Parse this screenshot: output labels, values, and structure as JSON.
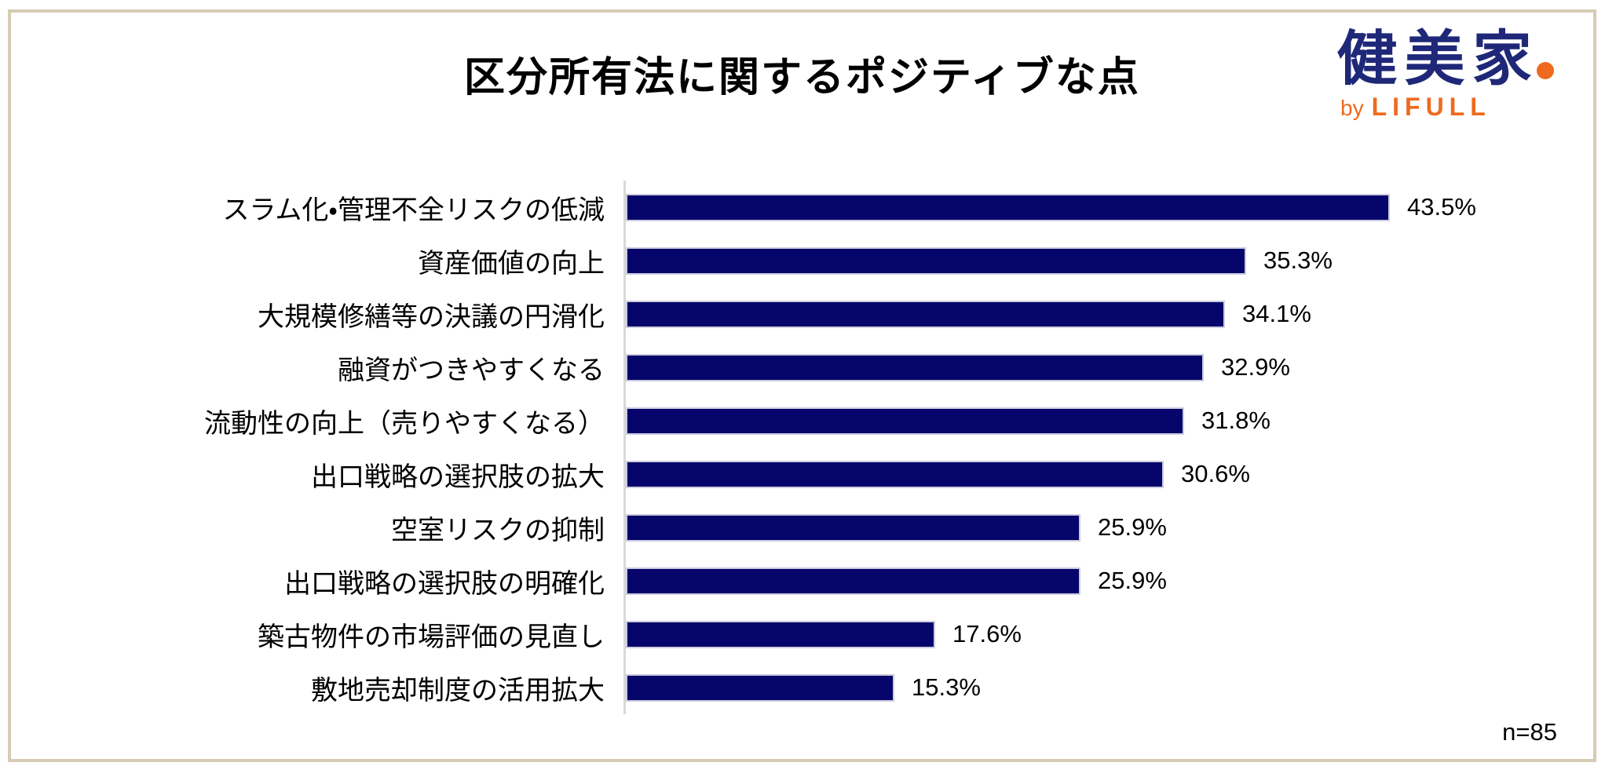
{
  "page": {
    "background_color": "#ffffff",
    "frame_border_color": "#d6ccb4"
  },
  "header": {
    "title": "区分所有法に関するポジティブな点",
    "logo": {
      "brand": "健美家",
      "byline_prefix": "by",
      "byline_brand": "LIFULL",
      "brand_color": "#1f2878",
      "accent_color": "#ee6a1f",
      "dot_icon": "orange-dot"
    }
  },
  "chart_data": {
    "type": "bar",
    "orientation": "horizontal",
    "title": "区分所有法に関するポジティブな点",
    "categories": [
      "スラム化・管理不全リスクの低減",
      "資産価値の向上",
      "大規模修繕等の決議の円滑化",
      "融資がつきやすくなる",
      "流動性の向上（売りやすくなる）",
      "出口戦略の選択肢の拡大",
      "空室リスクの抑制",
      "出口戦略の選択肢の明確化",
      "築古物件の市場評価の見直し",
      "敷地売却制度の活用拡大"
    ],
    "values": [
      43.5,
      35.3,
      34.1,
      32.9,
      31.8,
      30.6,
      25.9,
      25.9,
      17.6,
      15.3
    ],
    "value_labels": [
      "43.5%",
      "35.3%",
      "34.1%",
      "32.9%",
      "31.8%",
      "30.6%",
      "25.9%",
      "25.9%",
      "17.6%",
      "15.3%"
    ],
    "bar_color": "#05056b",
    "bar_border_color": "#ccccdf",
    "axis_line_color": "#d9d9d9",
    "grid": false,
    "legend": false,
    "data_labels_position": "outside-end"
  },
  "footer": {
    "sample_size": "n=85"
  }
}
